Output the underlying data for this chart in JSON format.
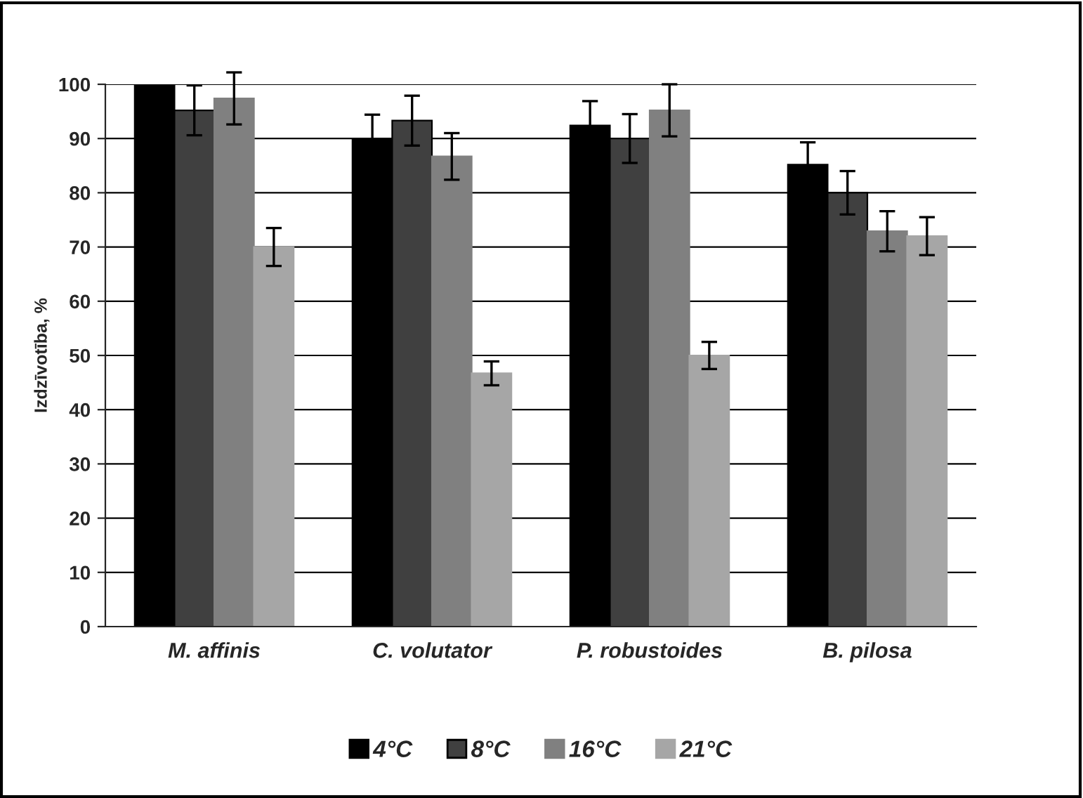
{
  "chart_data": {
    "type": "bar",
    "ylabel": "Izdzīvotība, %",
    "categories": [
      "M. affinis",
      "C. volutator",
      "P. robustoides",
      "B. pilosa"
    ],
    "series": [
      {
        "name": "4°C",
        "color": "#000000",
        "values": [
          100,
          90,
          92.4,
          85.2
        ],
        "errors": [
          null,
          4.4,
          4.5,
          4.1
        ]
      },
      {
        "name": "8°C",
        "color": "#404040",
        "values": [
          95.2,
          93.3,
          90,
          80
        ],
        "errors": [
          4.6,
          4.6,
          4.5,
          4
        ]
      },
      {
        "name": "16°C",
        "color": "#808080",
        "values": [
          97.4,
          86.7,
          95.2,
          72.9
        ],
        "errors": [
          4.8,
          4.3,
          4.8,
          3.7
        ]
      },
      {
        "name": "21°C",
        "color": "#a6a6a6",
        "values": [
          70,
          46.7,
          50,
          72
        ],
        "errors": [
          3.5,
          2.2,
          2.5,
          3.5
        ]
      }
    ],
    "ylim": [
      0,
      100
    ],
    "yticks": [
      0,
      10,
      20,
      30,
      40,
      50,
      60,
      70,
      80,
      90,
      100
    ],
    "grid": "y",
    "legend": "bottom"
  }
}
